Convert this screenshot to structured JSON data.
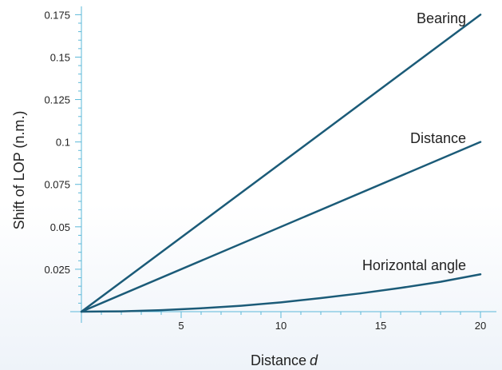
{
  "chart_data": {
    "type": "line",
    "xlabel": "Distance",
    "xlabel_var": "d",
    "ylabel": "Shift of LOP (n.m.)",
    "xlim": [
      0,
      20.4
    ],
    "ylim": [
      0,
      0.178
    ],
    "xticks": [
      5,
      10,
      15,
      20
    ],
    "xtick_labels": [
      "5",
      "10",
      "15",
      "20"
    ],
    "yticks": [
      0.025,
      0.05,
      0.075,
      0.1,
      0.125,
      0.15,
      0.175
    ],
    "ytick_labels": [
      "0.025",
      "0.05",
      "0.075",
      "0.1",
      "0.125",
      "0.15",
      "0.175"
    ],
    "grid": false,
    "legend": "inline labels",
    "colors": {
      "axis": "#5bb8d8",
      "line": "#1b5b78"
    },
    "series": [
      {
        "name": "Bearing",
        "x": [
          0,
          20
        ],
        "y": [
          0,
          0.175
        ]
      },
      {
        "name": "Distance",
        "x": [
          0,
          20
        ],
        "y": [
          0,
          0.1
        ]
      },
      {
        "name": "Horizontal angle",
        "x": [
          0,
          2,
          4,
          6,
          8,
          10,
          12,
          14,
          16,
          18,
          20
        ],
        "y": [
          0,
          0.0002,
          0.0009,
          0.002,
          0.0035,
          0.0055,
          0.008,
          0.0108,
          0.014,
          0.0176,
          0.022
        ]
      }
    ]
  }
}
